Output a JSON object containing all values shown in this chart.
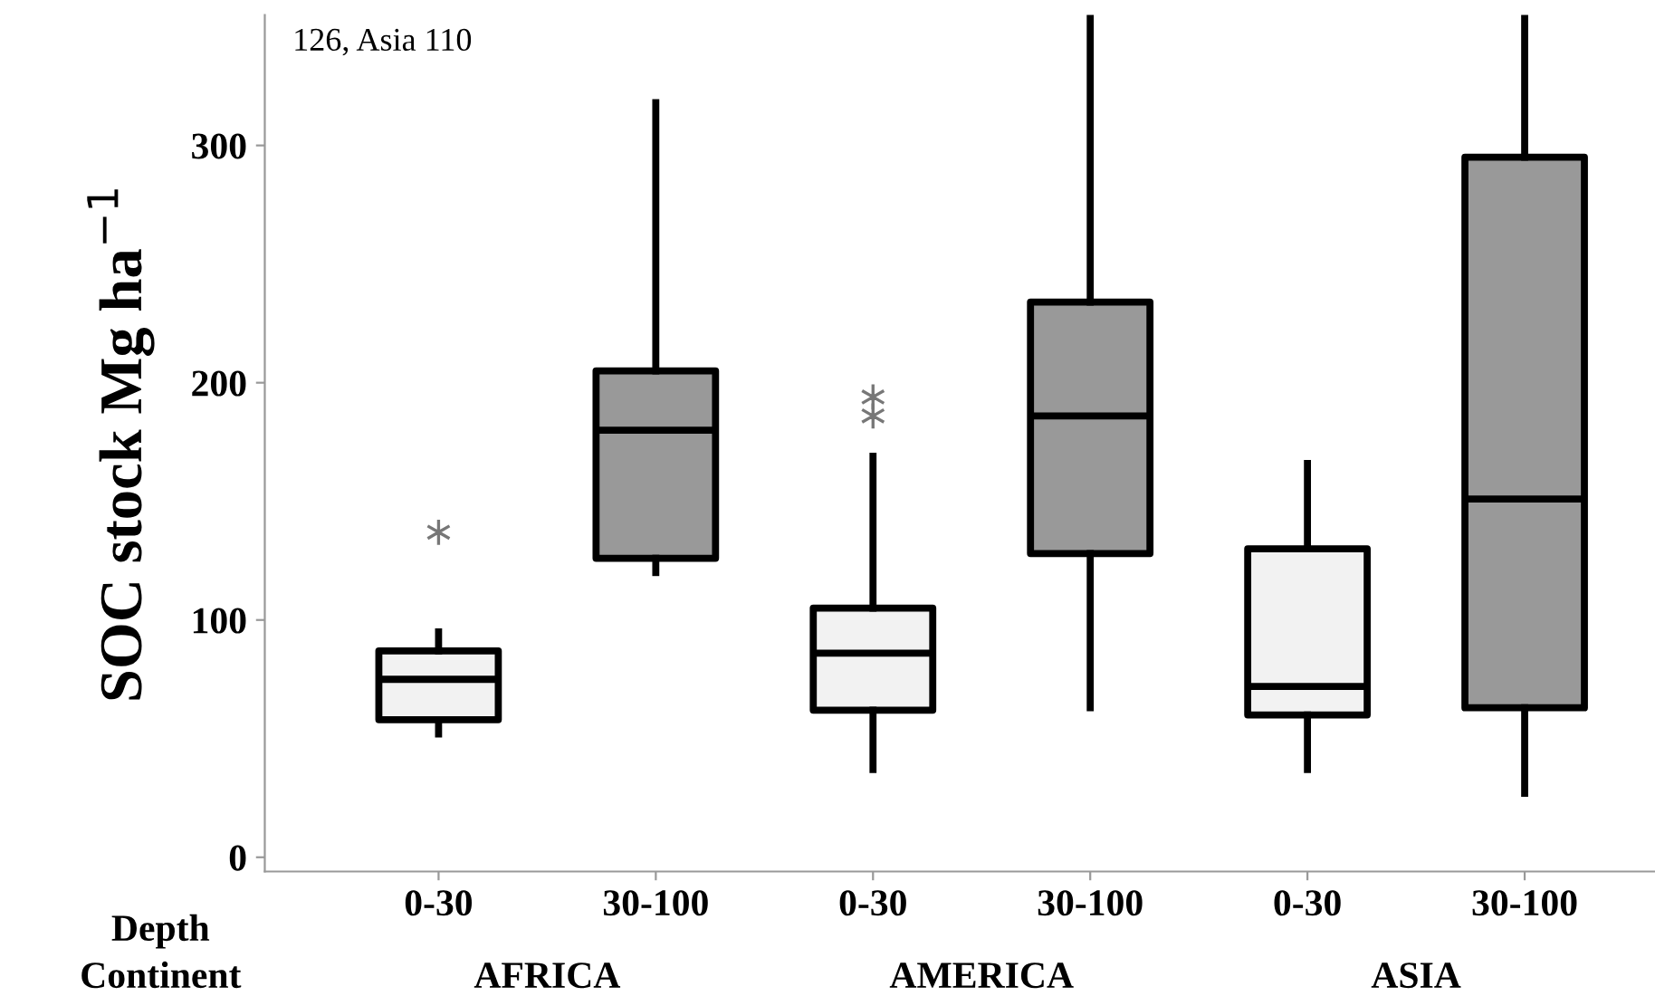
{
  "chart_data": {
    "type": "box",
    "ylabel": "SOC stock Mg ha$^{−1}$",
    "categories": [
      "0-30",
      "30-100",
      "0-30",
      "30-100",
      "0-30",
      "30-100"
    ],
    "colors": [
      "#f2f2f2",
      "#999999",
      "#f2f2f2",
      "#999999",
      "#f2f2f2",
      "#999999"
    ],
    "boxes": [
      {
        "low": 52,
        "q1": 58,
        "median": 75,
        "q3": 87,
        "high": 95,
        "outliers": [
          137
        ]
      },
      {
        "low": 120,
        "q1": 126,
        "median": 180,
        "q3": 205,
        "high": 318
      },
      {
        "low": 37,
        "q1": 62,
        "median": 86,
        "q3": 105,
        "high": 169,
        "outliers": [
          186,
          194
        ]
      },
      {
        "low": 63,
        "q1": 128,
        "median": 186,
        "q3": 234,
        "high": 355
      },
      {
        "low": 37,
        "q1": 60,
        "median": 72,
        "q3": 130,
        "high": 166
      },
      {
        "low": 27,
        "q1": 63,
        "median": 151,
        "q3": 295,
        "high": 355
      }
    ],
    "marker": "star",
    "ylim": [
      -6,
      355
    ],
    "yticks": [
      0,
      100,
      200,
      300
    ],
    "grid": false,
    "annotations": [
      "126, Asia 110",
      "Depth",
      "Continent",
      "AFRICA",
      "AMERICA",
      "ASIA"
    ]
  }
}
